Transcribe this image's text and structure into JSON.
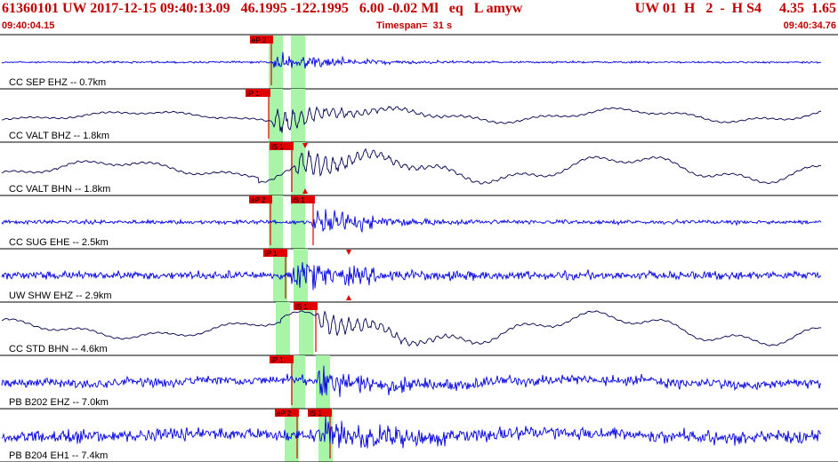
{
  "header": {
    "main_line": "61360101 UW 2017-12-15 09:40:13.09   46.1995 -122.1995   6.00 -0.02 Ml   eq   L amyw",
    "right_line": "UW 01  H   2  -  H S4     4.35  1.65",
    "start_time": "09:40:04.15",
    "timespan": "Timespan=  31 s",
    "end_time": "09:40:34.76"
  },
  "colors": {
    "header_text": "#c00000",
    "trace_blue": "#0000e0",
    "trace_dark": "#000050",
    "pick_red": "#e00000",
    "window_green": "#a8f5a8",
    "separator": "#000000"
  },
  "traces": [
    {
      "label": "CC SEP EHZ -- 0.7km",
      "color": "blue",
      "picks": [
        {
          "label": "eP 2"
        }
      ],
      "arrival_marker": false
    },
    {
      "label": "CC VALT BHZ -- 1.8km",
      "color": "dark",
      "picks": [
        {
          "label": "iP 1"
        }
      ],
      "arrival_marker": false
    },
    {
      "label": "CC VALT BHN -- 1.8km",
      "color": "dark",
      "picks": [
        {
          "label": "iS 1"
        }
      ],
      "arrival_marker": true
    },
    {
      "label": "CC SUG EHE -- 2.5km",
      "color": "blue",
      "picks": [
        {
          "label": "eP 2"
        },
        {
          "label": "iS 1"
        }
      ],
      "arrival_marker": false
    },
    {
      "label": "UW SHW EHZ -- 2.9km",
      "color": "blue",
      "picks": [
        {
          "label": "iP 1"
        }
      ],
      "arrival_marker": true
    },
    {
      "label": "CC STD BHN -- 4.6km",
      "color": "dark",
      "picks": [
        {
          "label": "iS 1"
        }
      ],
      "arrival_marker": false
    },
    {
      "label": "PB B202 EHZ -- 7.0km",
      "color": "blue",
      "picks": [
        {
          "label": "iP 1"
        }
      ],
      "arrival_marker": false
    },
    {
      "label": "PB B204 EH1 -- 7.4km",
      "color": "blue",
      "picks": [
        {
          "label": "eP 2"
        },
        {
          "label": "iS 1"
        }
      ],
      "arrival_marker": false
    }
  ]
}
